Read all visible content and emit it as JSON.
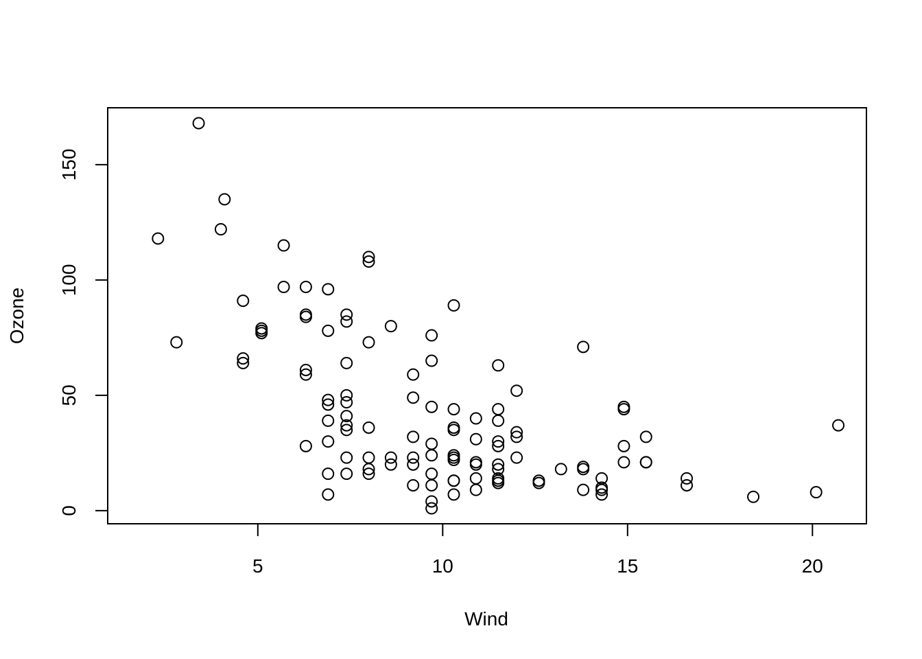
{
  "chart_data": {
    "type": "scatter",
    "x_label": "Wind",
    "y_label": "Ozone",
    "x": [
      7.4,
      8.0,
      12.6,
      11.5,
      14.9,
      8.6,
      13.8,
      20.1,
      6.9,
      9.7,
      9.2,
      10.9,
      13.2,
      11.5,
      12.0,
      18.4,
      11.5,
      9.7,
      9.7,
      16.6,
      9.7,
      12.0,
      12.0,
      14.9,
      5.7,
      7.4,
      9.7,
      13.8,
      11.5,
      8.0,
      14.9,
      20.7,
      9.2,
      11.5,
      10.3,
      4.1,
      9.2,
      9.2,
      4.6,
      10.9,
      5.1,
      6.3,
      5.7,
      7.4,
      14.3,
      14.3,
      6.9,
      10.3,
      6.3,
      5.1,
      11.5,
      6.9,
      8.6,
      8.0,
      8.6,
      12.0,
      7.4,
      7.4,
      7.4,
      9.2,
      6.9,
      13.8,
      7.4,
      6.9,
      7.4,
      4.6,
      4.0,
      10.3,
      8.0,
      11.5,
      11.5,
      9.7,
      10.3,
      6.3,
      7.4,
      10.9,
      10.3,
      15.5,
      14.3,
      9.7,
      3.4,
      8.0,
      9.7,
      2.3,
      6.3,
      6.3,
      6.9,
      5.1,
      2.8,
      4.6,
      7.4,
      15.5,
      10.9,
      10.3,
      10.9,
      9.7,
      14.9,
      15.5,
      6.3,
      10.9,
      11.5,
      6.9,
      13.8,
      10.3,
      10.3,
      8.0,
      12.6,
      9.2,
      10.3,
      10.3,
      16.6,
      6.9,
      14.3,
      8.0,
      11.5
    ],
    "y": [
      41,
      36,
      12,
      18,
      28,
      23,
      19,
      8,
      7,
      16,
      11,
      14,
      18,
      14,
      34,
      6,
      30,
      11,
      1,
      11,
      4,
      32,
      23,
      45,
      115,
      37,
      29,
      71,
      39,
      23,
      21,
      37,
      20,
      12,
      13,
      135,
      49,
      32,
      64,
      40,
      77,
      97,
      97,
      85,
      10,
      7,
      48,
      35,
      61,
      79,
      63,
      16,
      80,
      108,
      20,
      52,
      82,
      50,
      64,
      59,
      39,
      9,
      16,
      78,
      35,
      66,
      122,
      89,
      110,
      44,
      28,
      65,
      22,
      59,
      23,
      31,
      44,
      21,
      9,
      45,
      168,
      73,
      76,
      118,
      84,
      85,
      96,
      78,
      73,
      91,
      47,
      32,
      20,
      23,
      21,
      24,
      44,
      21,
      28,
      9,
      13,
      46,
      18,
      13,
      24,
      16,
      13,
      23,
      36,
      7,
      14,
      30,
      14,
      18,
      20
    ],
    "xlim": [
      0.94,
      21.46
    ],
    "ylim": [
      -5.68,
      174.68
    ],
    "xticks": [
      5,
      10,
      15,
      20
    ],
    "yticks": [
      0,
      50,
      100,
      150
    ]
  }
}
